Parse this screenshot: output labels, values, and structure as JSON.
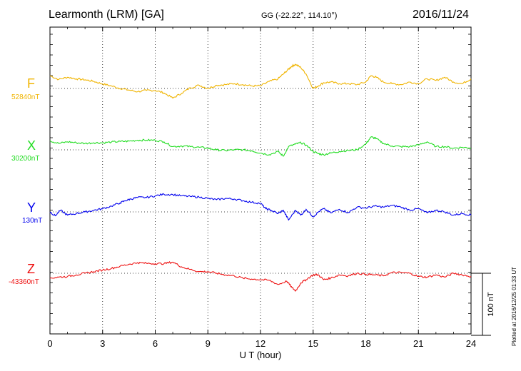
{
  "header": {
    "station": "Learmonth (LRM)  [GA]",
    "coords": "GG (-22.22°, 114.10°)",
    "date": "2016/11/24"
  },
  "plotted_note": "Plotted at 2016/12/25 01:33 UT",
  "chart_data": {
    "type": "line",
    "xlabel": "U T (hour)",
    "xlim": [
      0,
      24
    ],
    "xticks": [
      "0",
      "3",
      "6",
      "9",
      "12",
      "15",
      "18",
      "21",
      "24"
    ],
    "grid": true,
    "scale_bar": {
      "label": "100 nT",
      "value": 100
    },
    "series": [
      {
        "name": "F",
        "baseline_label": "52840nT",
        "color": "#f0b400",
        "x": [
          0,
          0.5,
          1,
          1.5,
          2,
          2.5,
          3,
          3.5,
          4,
          4.5,
          5,
          5.5,
          6,
          6.5,
          7,
          7.5,
          8,
          8.5,
          9,
          9.5,
          10,
          10.5,
          11,
          11.5,
          12,
          12.5,
          13,
          13.3,
          13.6,
          13.8,
          14,
          14.3,
          14.6,
          15,
          15.3,
          15.6,
          16,
          16.5,
          17,
          17.5,
          18,
          18.3,
          18.6,
          19,
          19.5,
          20,
          20.5,
          21,
          21.5,
          22,
          22.5,
          23,
          23.5,
          24
        ],
        "y": [
          40,
          28,
          35,
          30,
          27,
          22,
          14,
          8,
          0,
          -5,
          -10,
          -6,
          -6,
          -14,
          -30,
          -15,
          2,
          10,
          0,
          10,
          12,
          15,
          12,
          8,
          8,
          22,
          30,
          45,
          60,
          70,
          75,
          65,
          45,
          0,
          8,
          18,
          20,
          15,
          15,
          12,
          20,
          40,
          35,
          20,
          15,
          12,
          20,
          15,
          30,
          25,
          35,
          20,
          15,
          30
        ]
      },
      {
        "name": "X",
        "baseline_label": "30200nT",
        "color": "#22dd22",
        "x": [
          0,
          0.5,
          1,
          1.5,
          2,
          2.5,
          3,
          3.5,
          4,
          4.5,
          5,
          5.5,
          6,
          6.5,
          7,
          7.5,
          8,
          8.5,
          9,
          9.5,
          10,
          10.5,
          11,
          11.5,
          12,
          12.5,
          13,
          13.3,
          13.6,
          14,
          14.3,
          14.6,
          15,
          15.3,
          15.6,
          16,
          16.5,
          17,
          17.5,
          18,
          18.3,
          18.6,
          19,
          19.5,
          20,
          20.5,
          21,
          21.5,
          22,
          22.5,
          23,
          23.5,
          24
        ],
        "y": [
          28,
          20,
          25,
          22,
          20,
          22,
          22,
          24,
          26,
          27,
          30,
          30,
          30,
          25,
          10,
          12,
          10,
          8,
          5,
          0,
          -2,
          0,
          0,
          -3,
          -10,
          -15,
          -5,
          -20,
          10,
          18,
          22,
          15,
          -5,
          -12,
          -15,
          -10,
          -5,
          -2,
          0,
          18,
          40,
          35,
          20,
          12,
          10,
          10,
          15,
          25,
          10,
          10,
          5,
          8,
          5
        ]
      },
      {
        "name": "Y",
        "baseline_label": "130nT",
        "color": "#0000ee",
        "x": [
          0,
          0.3,
          0.6,
          1,
          1.5,
          2,
          2.5,
          3,
          3.5,
          4,
          4.3,
          4.6,
          5,
          5.5,
          6,
          6.5,
          7,
          7.5,
          8,
          8.5,
          9,
          9.5,
          10,
          10.5,
          11,
          11.5,
          12,
          12.3,
          12.6,
          13,
          13.3,
          13.6,
          14,
          14.3,
          14.6,
          15,
          15.3,
          15.6,
          16,
          16.5,
          17,
          17.5,
          18,
          18.5,
          19,
          19.5,
          20,
          20.5,
          21,
          21.5,
          22,
          22.5,
          23,
          23.5,
          24
        ],
        "y": [
          0,
          -12,
          5,
          -10,
          -5,
          0,
          5,
          10,
          18,
          28,
          35,
          40,
          45,
          45,
          50,
          55,
          54,
          50,
          48,
          46,
          42,
          38,
          42,
          40,
          35,
          30,
          27,
          10,
          5,
          -5,
          5,
          -25,
          5,
          -10,
          8,
          -15,
          0,
          10,
          -3,
          8,
          -2,
          15,
          12,
          18,
          15,
          20,
          15,
          6,
          10,
          -3,
          5,
          0,
          -10,
          -5,
          -10
        ]
      },
      {
        "name": "Z",
        "baseline_label": "-43360nT",
        "color": "#ee1111",
        "x": [
          0,
          0.5,
          1,
          1.5,
          2,
          2.5,
          3,
          3.5,
          4,
          4.5,
          5,
          5.5,
          6,
          6.5,
          7,
          7.5,
          8,
          8.5,
          9,
          9.5,
          10,
          10.5,
          11,
          11.5,
          12,
          12.5,
          13,
          13.5,
          13.8,
          14,
          14.3,
          14.6,
          15,
          15.3,
          15.6,
          16,
          16.5,
          17,
          17.5,
          18,
          18.5,
          19,
          19.5,
          20,
          20.5,
          21,
          21.5,
          22,
          22.5,
          23,
          23.5,
          24
        ],
        "y": [
          -15,
          -12,
          -10,
          -5,
          0,
          5,
          10,
          15,
          22,
          28,
          33,
          31,
          30,
          30,
          35,
          20,
          12,
          5,
          5,
          0,
          -5,
          -8,
          -15,
          -18,
          -20,
          -22,
          -35,
          -25,
          -45,
          -55,
          -30,
          -20,
          -5,
          -5,
          -20,
          -15,
          -5,
          -8,
          0,
          -3,
          -5,
          -8,
          2,
          2,
          0,
          -10,
          -12,
          -5,
          -12,
          0,
          -5,
          -10
        ]
      }
    ]
  }
}
